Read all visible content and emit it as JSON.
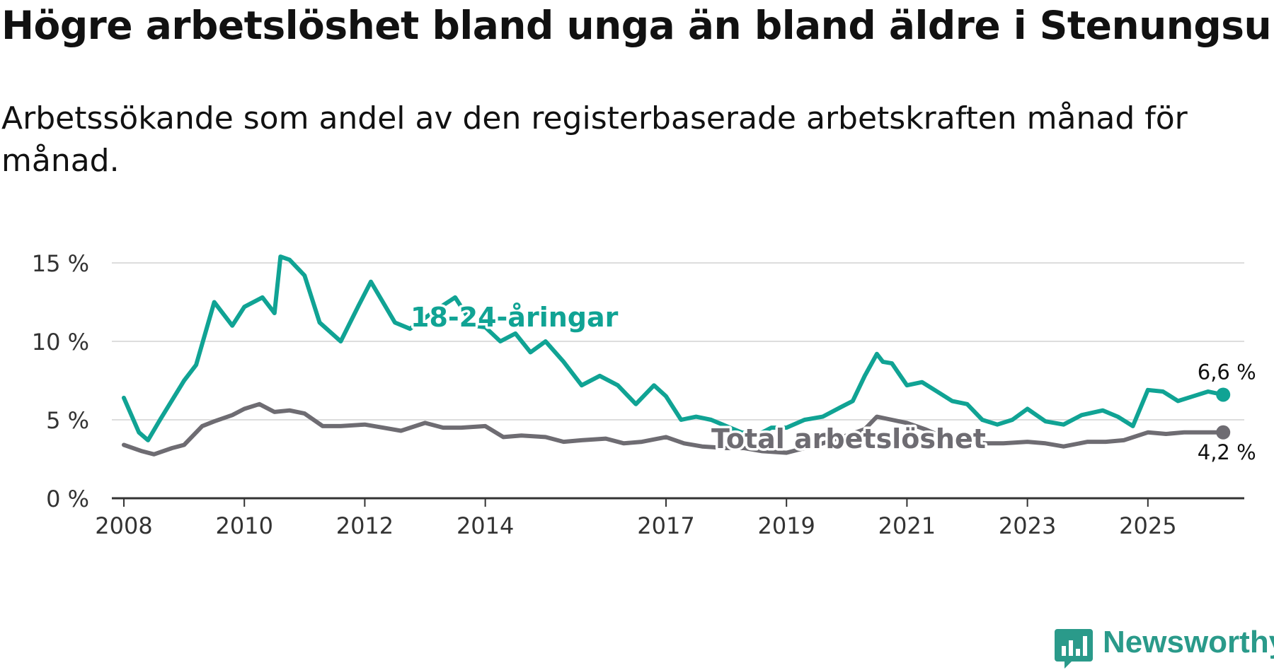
{
  "title": "Högre arbetslöshet bland unga än bland äldre i Stenungsund",
  "subtitle": "Arbetssökande som andel av den registerbaserade arbetskraften månad för månad.",
  "brand": "Newsworthy",
  "colors": {
    "youth": "#10a394",
    "total": "#6e6c72",
    "grid": "#dddddd",
    "axis": "#333333",
    "brand": "#2a9a8a"
  },
  "chart_data": {
    "type": "line",
    "title": "Högre arbetslöshet bland unga än bland äldre i Stenungsund",
    "subtitle": "Arbetssökande som andel av den registerbaserade arbetskraften månad för månad.",
    "xlabel": "",
    "ylabel": "",
    "x_range": [
      2007.8,
      2026.6
    ],
    "ylim": [
      0,
      15
    ],
    "y_ticks": [
      0,
      5,
      10,
      15
    ],
    "y_tick_labels": [
      "0 %",
      "5 %",
      "10 %",
      "15 %"
    ],
    "x_ticks": [
      2008,
      2010,
      2012,
      2014,
      2017,
      2019,
      2021,
      2023,
      2025
    ],
    "x_tick_labels": [
      "2008",
      "2010",
      "2012",
      "2014",
      "2017",
      "2019",
      "2021",
      "2023",
      "2025"
    ],
    "grid": true,
    "series": [
      {
        "name": "18-24-åringar",
        "color": "#10a394",
        "end_label": "6,6 %",
        "x": [
          2008.0,
          2008.25,
          2008.4,
          2008.6,
          2009.0,
          2009.2,
          2009.5,
          2009.8,
          2010.0,
          2010.3,
          2010.5,
          2010.6,
          2010.75,
          2011.0,
          2011.25,
          2011.6,
          2011.9,
          2012.1,
          2012.5,
          2012.75,
          2013.0,
          2013.3,
          2013.5,
          2013.8,
          2014.0,
          2014.25,
          2014.5,
          2014.75,
          2015.0,
          2015.3,
          2015.6,
          2015.9,
          2016.2,
          2016.5,
          2016.8,
          2017.0,
          2017.25,
          2017.5,
          2017.75,
          2018.0,
          2018.25,
          2018.5,
          2018.75,
          2019.0,
          2019.3,
          2019.6,
          2019.9,
          2020.1,
          2020.3,
          2020.5,
          2020.6,
          2020.75,
          2021.0,
          2021.25,
          2021.5,
          2021.75,
          2022.0,
          2022.25,
          2022.5,
          2022.75,
          2023.0,
          2023.3,
          2023.6,
          2023.9,
          2024.25,
          2024.5,
          2024.75,
          2025.0,
          2025.25,
          2025.5,
          2025.75,
          2026.0,
          2026.25
        ],
        "values": [
          6.4,
          4.2,
          3.7,
          5.0,
          7.5,
          8.5,
          12.5,
          11.0,
          12.2,
          12.8,
          11.8,
          15.4,
          15.2,
          14.2,
          11.2,
          10.0,
          12.3,
          13.8,
          11.2,
          10.8,
          11.5,
          12.3,
          12.8,
          11.0,
          10.9,
          10.0,
          10.5,
          9.3,
          10.0,
          8.7,
          7.2,
          7.8,
          7.2,
          6.0,
          7.2,
          6.5,
          5.0,
          5.2,
          5.0,
          4.6,
          4.2,
          4.0,
          4.5,
          4.5,
          5.0,
          5.2,
          5.8,
          6.2,
          7.8,
          9.2,
          8.7,
          8.6,
          7.2,
          7.4,
          6.8,
          6.2,
          6.0,
          5.0,
          4.7,
          5.0,
          5.7,
          4.9,
          4.7,
          5.3,
          5.6,
          5.2,
          4.6,
          6.9,
          6.8,
          6.2,
          6.5,
          6.8,
          6.6
        ]
      },
      {
        "name": "Total arbetslöshet",
        "color": "#6e6c72",
        "end_label": "4,2 %",
        "x": [
          2008.0,
          2008.3,
          2008.5,
          2008.8,
          2009.0,
          2009.3,
          2009.5,
          2009.8,
          2010.0,
          2010.25,
          2010.5,
          2010.75,
          2011.0,
          2011.3,
          2011.6,
          2012.0,
          2012.3,
          2012.6,
          2013.0,
          2013.3,
          2013.6,
          2014.0,
          2014.3,
          2014.6,
          2015.0,
          2015.3,
          2015.6,
          2016.0,
          2016.3,
          2016.6,
          2017.0,
          2017.3,
          2017.6,
          2018.0,
          2018.3,
          2018.6,
          2019.0,
          2019.3,
          2019.6,
          2020.0,
          2020.3,
          2020.5,
          2020.75,
          2021.0,
          2021.3,
          2021.6,
          2022.0,
          2022.3,
          2022.6,
          2023.0,
          2023.3,
          2023.6,
          2024.0,
          2024.3,
          2024.6,
          2025.0,
          2025.3,
          2025.6,
          2026.0,
          2026.25
        ],
        "values": [
          3.4,
          3.0,
          2.8,
          3.2,
          3.4,
          4.6,
          4.9,
          5.3,
          5.7,
          6.0,
          5.5,
          5.6,
          5.4,
          4.6,
          4.6,
          4.7,
          4.5,
          4.3,
          4.8,
          4.5,
          4.5,
          4.6,
          3.9,
          4.0,
          3.9,
          3.6,
          3.7,
          3.8,
          3.5,
          3.6,
          3.9,
          3.5,
          3.3,
          3.2,
          3.2,
          3.0,
          2.9,
          3.2,
          3.5,
          4.0,
          4.4,
          5.2,
          5.0,
          4.8,
          4.4,
          3.9,
          3.7,
          3.5,
          3.5,
          3.6,
          3.5,
          3.3,
          3.6,
          3.6,
          3.7,
          4.2,
          4.1,
          4.2,
          4.2,
          4.2
        ]
      }
    ]
  }
}
